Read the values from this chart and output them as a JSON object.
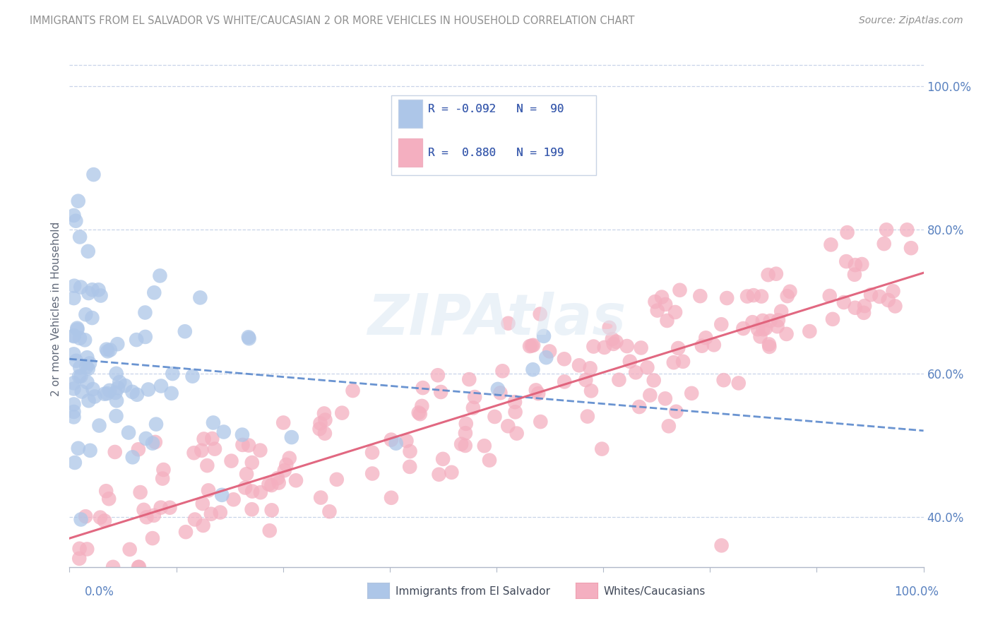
{
  "title": "IMMIGRANTS FROM EL SALVADOR VS WHITE/CAUCASIAN 2 OR MORE VEHICLES IN HOUSEHOLD CORRELATION CHART",
  "source": "Source: ZipAtlas.com",
  "ylabel": "2 or more Vehicles in Household",
  "xlim": [
    0.0,
    100.0
  ],
  "ylim": [
    33.0,
    105.0
  ],
  "ytick_vals": [
    40.0,
    60.0,
    80.0,
    100.0
  ],
  "ytick_labels": [
    "40.0%",
    "60.0%",
    "80.0%",
    "100.0%"
  ],
  "blue_R": -0.092,
  "blue_N": 90,
  "pink_R": 0.88,
  "pink_N": 199,
  "blue_color": "#adc6e8",
  "pink_color": "#f4afc0",
  "blue_line_color": "#5a88cc",
  "pink_line_color": "#e0607a",
  "legend_label_blue": "Immigrants from El Salvador",
  "legend_label_pink": "Whites/Caucasians",
  "watermark": "ZIPAtlas",
  "background_color": "#ffffff",
  "grid_color": "#c8d4e8",
  "title_color": "#909090",
  "source_color": "#909090",
  "blue_seed": 42,
  "pink_seed": 99,
  "blue_x_max": 35.0,
  "blue_y_center": 61.0,
  "pink_y_start": 37.0,
  "pink_y_end": 74.0,
  "blue_line_x0": 0.0,
  "blue_line_y0": 62.0,
  "blue_line_x1": 100.0,
  "blue_line_y1": 52.0,
  "pink_line_x0": 0.0,
  "pink_line_y0": 37.0,
  "pink_line_x1": 100.0,
  "pink_line_y1": 74.0
}
